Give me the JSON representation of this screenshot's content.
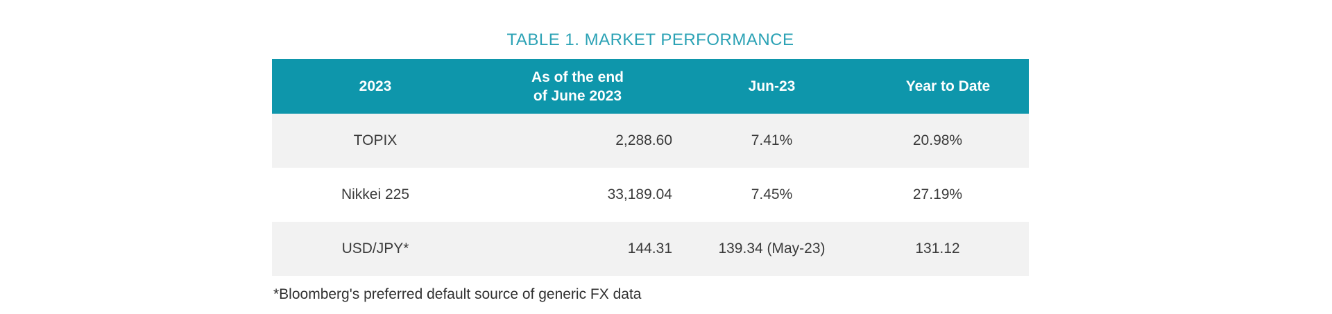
{
  "page": {
    "title": "TABLE 1. MARKET PERFORMANCE",
    "footnote": "*Bloomberg's preferred default source of generic FX data"
  },
  "table": {
    "header": {
      "col1": "2023",
      "col2": "As of the end\nof June 2023",
      "col3": "Jun-23",
      "col4": "Year to Date"
    },
    "rows": [
      {
        "label": "TOPIX",
        "as_of_end_june": "2,288.60",
        "jun_23": "7.41%",
        "year_to_date": "20.98%"
      },
      {
        "label": "Nikkei 225",
        "as_of_end_june": "33,189.04",
        "jun_23": "7.45%",
        "year_to_date": "27.19%"
      },
      {
        "label": "USD/JPY*",
        "as_of_end_june": "144.31",
        "jun_23": "139.34 (May-23)",
        "year_to_date": "131.12"
      }
    ]
  },
  "colors": {
    "header_bg": "#0e96ab",
    "title_text": "#2ba2b5",
    "row_stripe": "#f2f2f2",
    "body_text": "#3a3a3a",
    "header_text": "#ffffff"
  }
}
